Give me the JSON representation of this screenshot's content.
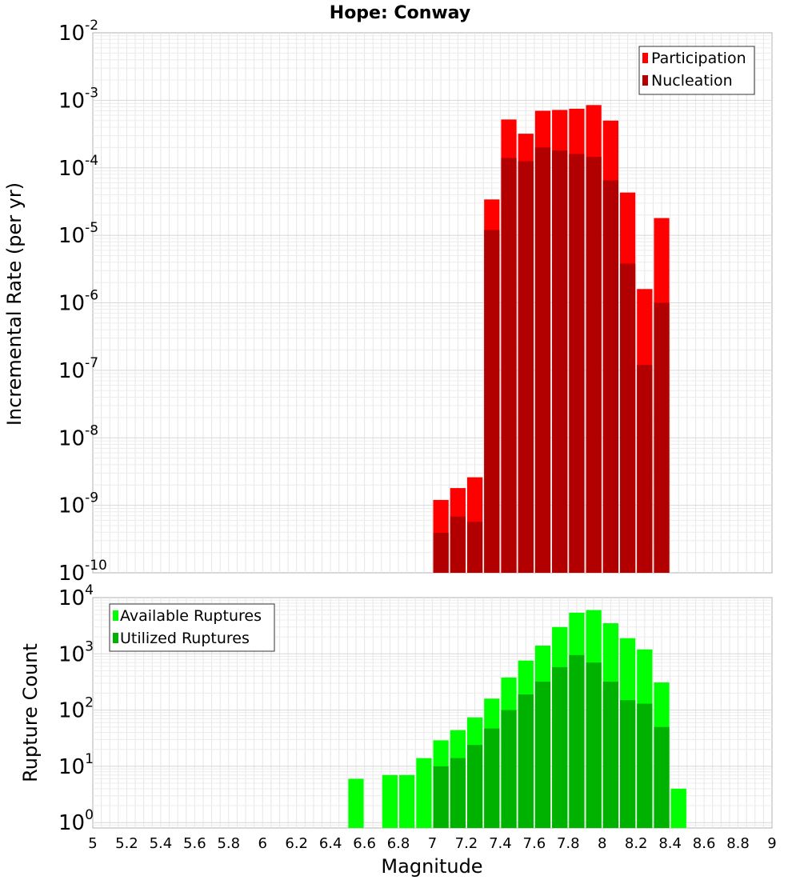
{
  "title": "Hope: Conway",
  "x_axis": {
    "label": "Magnitude",
    "range": [
      5,
      9
    ],
    "ticks": [
      "5",
      "5.2",
      "5.4",
      "5.6",
      "5.8",
      "6",
      "6.2",
      "6.4",
      "6.6",
      "6.8",
      "7",
      "7.2",
      "7.4",
      "7.6",
      "7.8",
      "8",
      "8.2",
      "8.4",
      "8.6",
      "8.8",
      "9"
    ]
  },
  "chart_data": [
    {
      "type": "bar",
      "panel": "top",
      "ylabel": "Incremental Rate (per yr)",
      "y_scale": "log",
      "ylim": [
        1e-10,
        0.01
      ],
      "y_ticks": [
        {
          "base": "10",
          "exp": "-2"
        },
        {
          "base": "10",
          "exp": "-3"
        },
        {
          "base": "10",
          "exp": "-4"
        },
        {
          "base": "10",
          "exp": "-5"
        },
        {
          "base": "10",
          "exp": "-6"
        },
        {
          "base": "10",
          "exp": "-7"
        },
        {
          "base": "10",
          "exp": "-8"
        },
        {
          "base": "10",
          "exp": "-9"
        },
        {
          "base": "10",
          "exp": "-10"
        }
      ],
      "legend_position": "top-right",
      "grid": true,
      "bin_width": 0.1,
      "x": [
        7.05,
        7.15,
        7.25,
        7.35,
        7.45,
        7.55,
        7.65,
        7.75,
        7.85,
        7.95,
        8.05,
        8.15,
        8.25,
        8.35
      ],
      "series": [
        {
          "name": "Participation",
          "color": "#ff0000",
          "values": [
            1.2e-09,
            1.8e-09,
            2.6e-09,
            3.4e-05,
            0.00052,
            0.00032,
            0.0007,
            0.00072,
            0.00075,
            0.00085,
            0.0005,
            4.3e-05,
            1.6e-06,
            1.8e-05
          ]
        },
        {
          "name": "Nucleation",
          "color": "#b20000",
          "values": [
            3.9e-10,
            6.8e-10,
            5.7e-10,
            1.2e-05,
            0.00014,
            0.000125,
            0.0002,
            0.00018,
            0.00016,
            0.000145,
            6.5e-05,
            3.8e-06,
            1.2e-07,
            1e-06
          ]
        }
      ]
    },
    {
      "type": "bar",
      "panel": "bottom",
      "ylabel": "Rupture Count",
      "y_scale": "log",
      "ylim": [
        0.8,
        10000
      ],
      "y_ticks": [
        {
          "base": "10",
          "exp": "4"
        },
        {
          "base": "10",
          "exp": "3"
        },
        {
          "base": "10",
          "exp": "2"
        },
        {
          "base": "10",
          "exp": "1"
        },
        {
          "base": "10",
          "exp": "0"
        }
      ],
      "legend_position": "top-left",
      "grid": true,
      "bin_width": 0.1,
      "x": [
        6.55,
        6.75,
        6.85,
        6.95,
        7.05,
        7.15,
        7.25,
        7.35,
        7.45,
        7.55,
        7.65,
        7.75,
        7.85,
        7.95,
        8.05,
        8.15,
        8.25,
        8.35,
        8.45
      ],
      "series": [
        {
          "name": "Available Ruptures",
          "color": "#00ff00",
          "values": [
            6,
            7,
            7,
            14,
            29,
            44,
            74,
            160,
            380,
            760,
            1400,
            3000,
            5400,
            6000,
            3500,
            1900,
            1200,
            310,
            4
          ]
        },
        {
          "name": "Utilized Ruptures",
          "color": "#00b200",
          "values": [
            0,
            0,
            0,
            0,
            10,
            14,
            24,
            47,
            100,
            190,
            320,
            580,
            950,
            700,
            320,
            150,
            130,
            50,
            0
          ]
        }
      ]
    }
  ]
}
